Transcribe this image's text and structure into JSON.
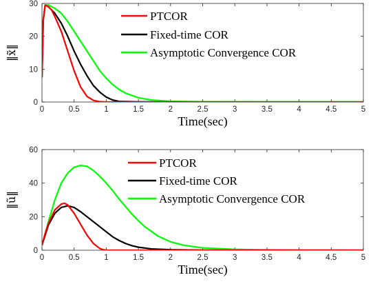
{
  "chart_data": [
    {
      "type": "line",
      "xlabel": "Time(sec)",
      "ylabel": "‖x̃‖",
      "xlim": [
        0,
        5
      ],
      "ylim": [
        0,
        30
      ],
      "xticks": [
        "0",
        "0.5",
        "1",
        "1.5",
        "2",
        "2.5",
        "3",
        "3.5",
        "4",
        "4.5",
        "5"
      ],
      "yticks": [
        "0",
        "10",
        "20",
        "30"
      ],
      "legend_position": "top-right",
      "grid": false,
      "series": [
        {
          "name": "PTCOR",
          "color": "#ff0000",
          "x": [
            0,
            0.02,
            0.05,
            0.1,
            0.15,
            0.2,
            0.3,
            0.4,
            0.5,
            0.6,
            0.7,
            0.8,
            0.9,
            1.0,
            1.2,
            2.0,
            5.0
          ],
          "y": [
            7.5,
            25,
            29.5,
            29,
            28,
            26,
            21.5,
            15.5,
            9.5,
            4.6,
            1.7,
            0.5,
            0.1,
            0,
            0,
            0,
            0
          ]
        },
        {
          "name": "Fixed-time COR",
          "color": "#000000",
          "x": [
            0,
            0.02,
            0.05,
            0.1,
            0.15,
            0.2,
            0.3,
            0.4,
            0.5,
            0.6,
            0.7,
            0.8,
            0.9,
            1.0,
            1.1,
            1.2,
            1.5,
            2.0,
            5.0
          ],
          "y": [
            7.5,
            25,
            29.5,
            29,
            28,
            27,
            24,
            20,
            15.5,
            11.5,
            8,
            5,
            3,
            1.5,
            0.6,
            0.2,
            0.05,
            0,
            0
          ]
        },
        {
          "name": "Asymptotic Convergence COR",
          "color": "#00ff00",
          "x": [
            0,
            0.02,
            0.05,
            0.1,
            0.15,
            0.2,
            0.3,
            0.4,
            0.5,
            0.6,
            0.7,
            0.8,
            0.9,
            1.0,
            1.1,
            1.2,
            1.3,
            1.5,
            1.7,
            2.0,
            2.5,
            3.0,
            4.0,
            5.0
          ],
          "y": [
            7.5,
            25,
            29.5,
            29.5,
            29,
            28.5,
            27,
            24.5,
            21.5,
            18.5,
            15.5,
            12.5,
            9.5,
            7.2,
            5.3,
            3.8,
            2.7,
            1.3,
            0.6,
            0.2,
            0.05,
            0.02,
            0,
            0
          ]
        }
      ]
    },
    {
      "type": "line",
      "xlabel": "Time(sec)",
      "ylabel": "‖ũ‖",
      "xlim": [
        0,
        5
      ],
      "ylim": [
        0,
        60
      ],
      "xticks": [
        "0",
        "0.5",
        "1",
        "1.5",
        "2",
        "2.5",
        "3",
        "3.5",
        "4",
        "4.5",
        "5"
      ],
      "yticks": [
        "0",
        "20",
        "40",
        "60"
      ],
      "legend_position": "top-right",
      "grid": false,
      "series": [
        {
          "name": "PTCOR",
          "color": "#ff0000",
          "x": [
            0,
            0.05,
            0.1,
            0.2,
            0.3,
            0.35,
            0.4,
            0.5,
            0.6,
            0.7,
            0.8,
            0.9,
            0.95,
            1.0,
            2.0,
            5.0
          ],
          "y": [
            3,
            10,
            16,
            24,
            27.5,
            28,
            27,
            22,
            15.5,
            9,
            4,
            1,
            0.3,
            0,
            0,
            0
          ]
        },
        {
          "name": "Fixed-time COR",
          "color": "#000000",
          "x": [
            0,
            0.05,
            0.1,
            0.2,
            0.3,
            0.4,
            0.5,
            0.6,
            0.7,
            0.8,
            0.9,
            1.0,
            1.1,
            1.2,
            1.3,
            1.4,
            1.5,
            1.7,
            2.0,
            2.5,
            3.0,
            5.0
          ],
          "y": [
            3,
            9,
            15,
            22,
            25.5,
            26.5,
            25.5,
            23,
            20,
            17,
            14,
            11,
            8,
            5.8,
            4,
            2.7,
            1.8,
            0.8,
            0.3,
            0.05,
            0,
            0
          ]
        },
        {
          "name": "Asymptotic Convergence COR",
          "color": "#00ff00",
          "x": [
            0,
            0.05,
            0.1,
            0.2,
            0.3,
            0.4,
            0.5,
            0.6,
            0.7,
            0.8,
            0.9,
            1.0,
            1.1,
            1.2,
            1.3,
            1.4,
            1.5,
            1.6,
            1.8,
            2.0,
            2.2,
            2.5,
            3.0,
            3.5,
            4.0,
            5.0
          ],
          "y": [
            3,
            10,
            17,
            30,
            40,
            46,
            49.5,
            50.5,
            50,
            47.5,
            44,
            40,
            35.5,
            30.5,
            26,
            21.5,
            17.5,
            14,
            8.5,
            5,
            3,
            1.4,
            0.5,
            0.2,
            0.1,
            0
          ]
        }
      ]
    }
  ]
}
